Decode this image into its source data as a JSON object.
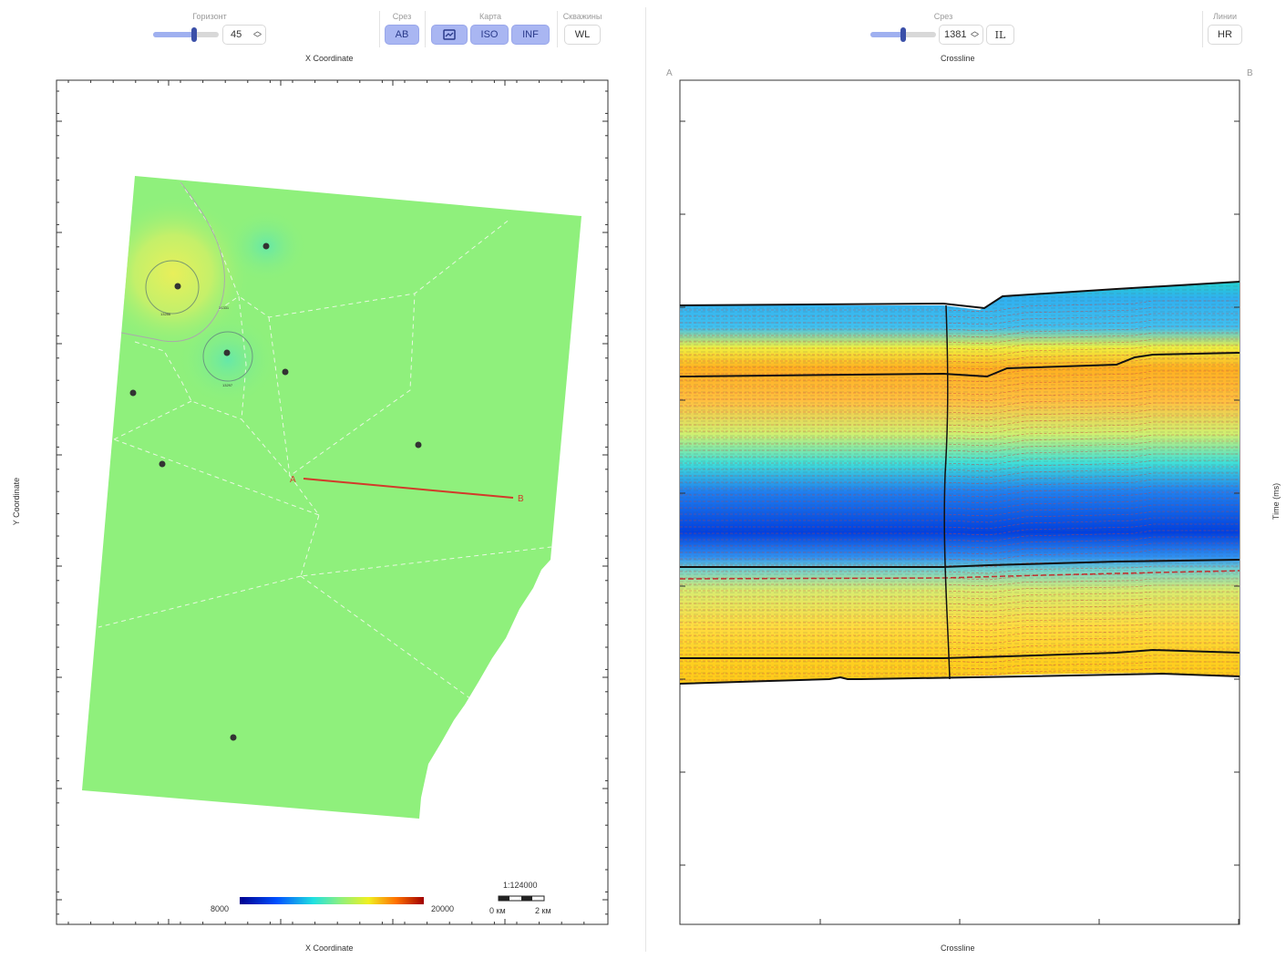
{
  "left_panel": {
    "horizon": {
      "group_label": "Горизонт",
      "value": "45",
      "slider_fraction": 0.62
    },
    "slice_group": {
      "group_label": "Срез",
      "ab_label": "AB"
    },
    "map_group": {
      "group_label": "Карта",
      "map_icon": "map-icon",
      "iso_label": "ISO",
      "inf_label": "INF"
    },
    "wells_group": {
      "group_label": "Скважины",
      "wl_label": "WL"
    },
    "x_axis_title_top": "X Coordinate",
    "x_axis_title_bottom": "X Coordinate",
    "y_axis_title": "Y Coordinate",
    "colorbar": {
      "min_label": "8000",
      "max_label": "20000"
    },
    "scale": {
      "ratio": "1:124000",
      "zero_label": "0 км",
      "dist_label": "2 км"
    },
    "profile_start": "A",
    "profile_end": "B",
    "well_labels": [
      "13286",
      "14331",
      "13297"
    ]
  },
  "right_panel": {
    "slice": {
      "group_label": "Срез",
      "value": "1381",
      "slider_fraction": 0.5,
      "il_label": "IL"
    },
    "lines_group": {
      "group_label": "Линии",
      "hr_label": "HR"
    },
    "x_axis_title_top": "Crossline",
    "x_axis_title_bottom": "Crossline",
    "y_axis_title": "Time (ms)",
    "corner_left": "A",
    "corner_right": "B"
  },
  "colors": {
    "accent_button": "#a9b6f2",
    "profile_line": "#d23a2a",
    "map_fill": "#8ff07c"
  }
}
